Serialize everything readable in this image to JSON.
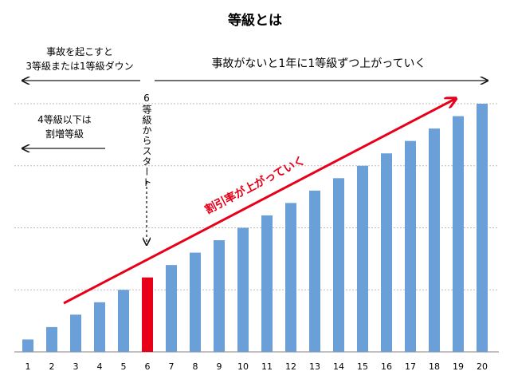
{
  "chart_data": {
    "type": "bar",
    "title": "等級とは",
    "categories": [
      "1",
      "2",
      "3",
      "4",
      "5",
      "6",
      "7",
      "8",
      "9",
      "10",
      "11",
      "12",
      "13",
      "14",
      "15",
      "16",
      "17",
      "18",
      "19",
      "20"
    ],
    "values": [
      1,
      2,
      3,
      4,
      5,
      6,
      7,
      8,
      9,
      10,
      11,
      12,
      13,
      14,
      15,
      16,
      17,
      18,
      19,
      20
    ],
    "highlight_category": "6",
    "ylim": [
      0,
      20
    ],
    "grid": true,
    "bar_color": "#6a9fd8",
    "highlight_color": "#e8001a",
    "annotation_color": "#e8001a",
    "annotations": {
      "down_text_1": "事故を起こすと",
      "down_text_2": "3等級または1等級ダウン",
      "up_text": "事故がないと1年に1等級ずつ上がっていく",
      "surcharge_1": "4等級以下は",
      "surcharge_2": "割増等級",
      "start_text": "6等級からスタート",
      "trend_text": "割引率が上がっていく"
    }
  }
}
